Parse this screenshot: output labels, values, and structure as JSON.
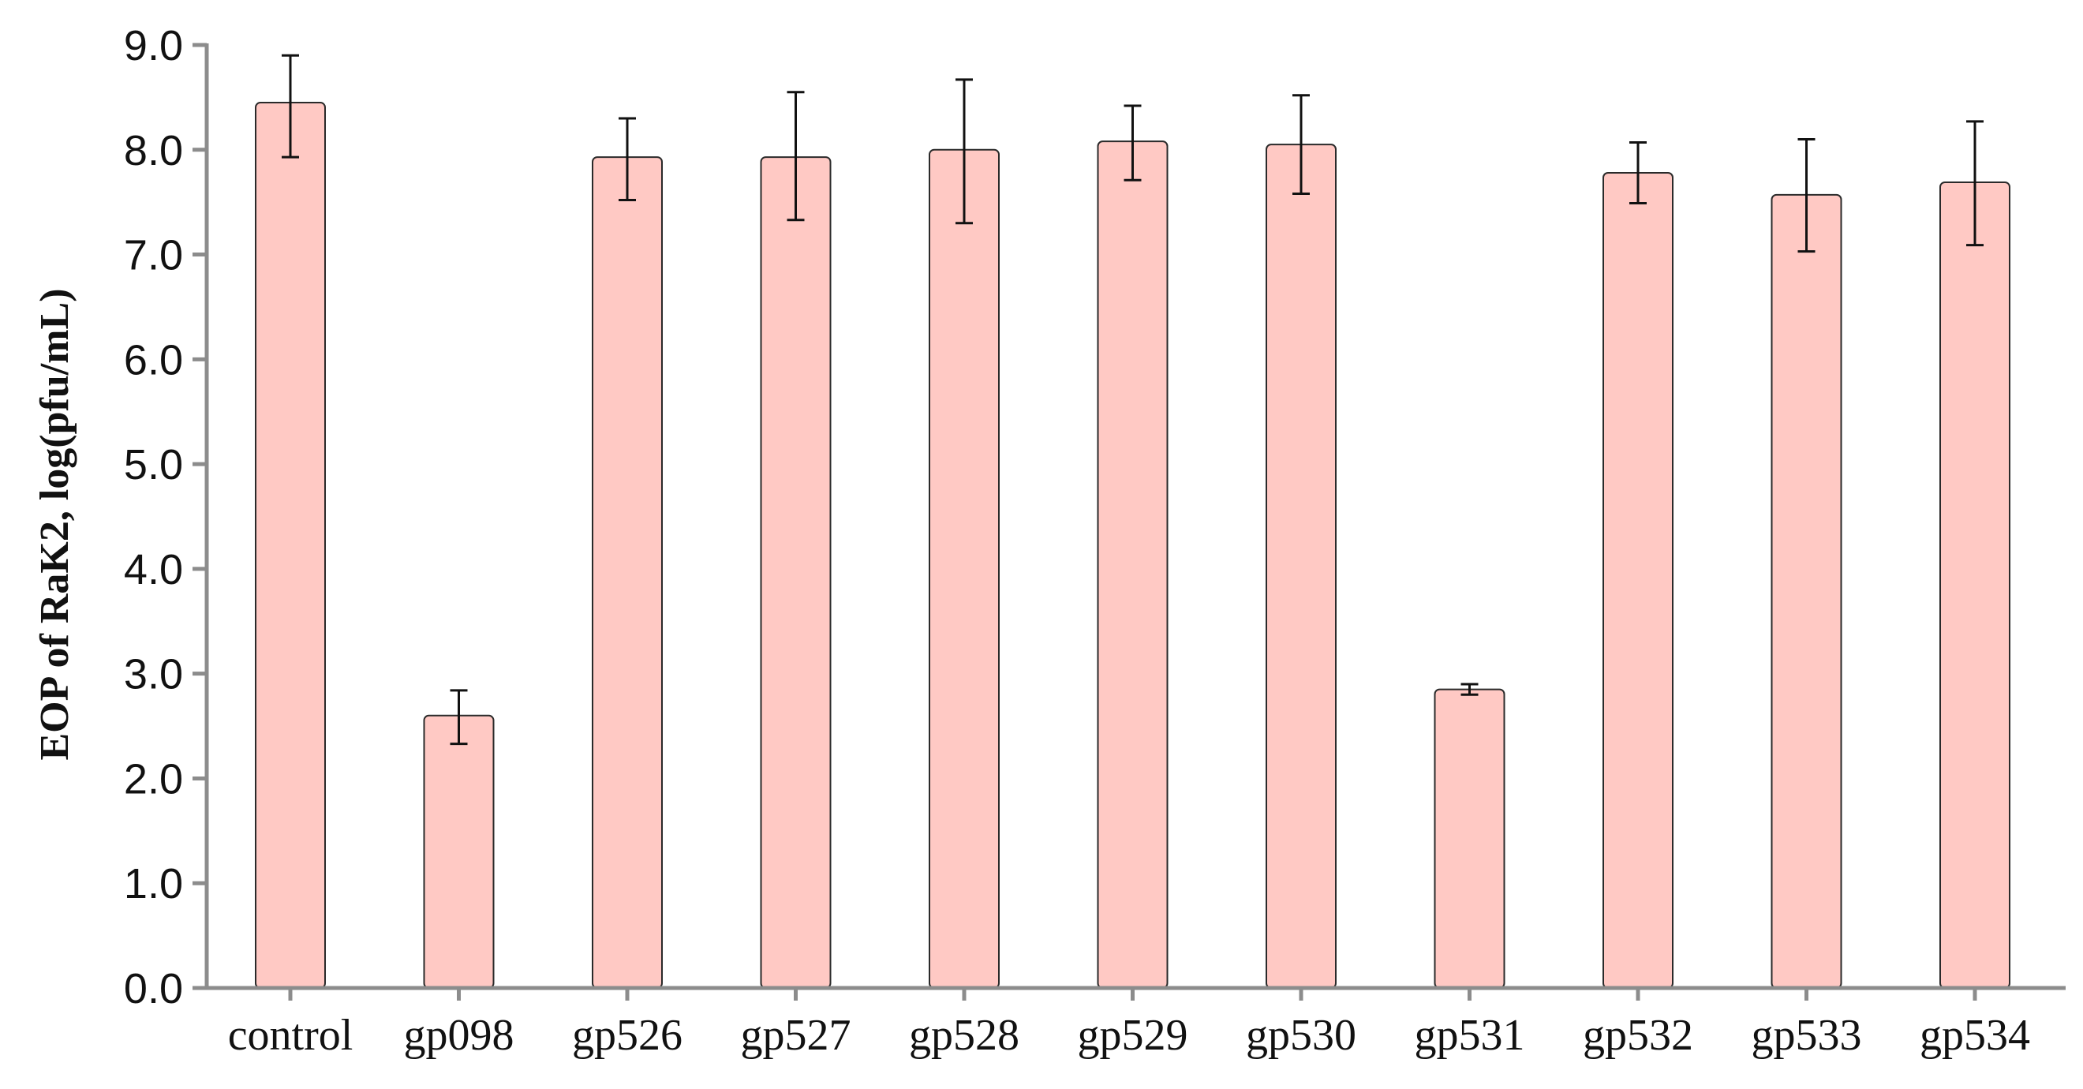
{
  "chart_data": {
    "type": "bar",
    "title": "",
    "xlabel": "",
    "ylabel": "EOP of RaK2, log(pfu/mL)",
    "ylim": [
      0,
      9
    ],
    "yticks": [
      "0.0",
      "1.0",
      "2.0",
      "3.0",
      "4.0",
      "5.0",
      "6.0",
      "7.0",
      "8.0",
      "9.0"
    ],
    "grid": false,
    "legend": "none",
    "categories": [
      "control",
      "gp098",
      "gp526",
      "gp527",
      "gp528",
      "gp529",
      "gp530",
      "gp531",
      "gp532",
      "gp533",
      "gp534"
    ],
    "values": [
      8.45,
      2.6,
      7.93,
      7.93,
      8.0,
      8.08,
      8.05,
      2.85,
      7.78,
      7.57,
      7.69
    ],
    "error_low": [
      7.93,
      2.33,
      7.52,
      7.33,
      7.3,
      7.71,
      7.58,
      2.8,
      7.49,
      7.03,
      7.09
    ],
    "error_high": [
      8.9,
      2.84,
      8.3,
      8.55,
      8.67,
      8.42,
      8.52,
      2.9,
      8.07,
      8.1,
      8.27
    ],
    "colors": {
      "bar_fill": "#ffc9c4",
      "bar_stroke": "#2a2a2a",
      "axis": "#8c8c8c",
      "error_bar": "#111111"
    }
  }
}
